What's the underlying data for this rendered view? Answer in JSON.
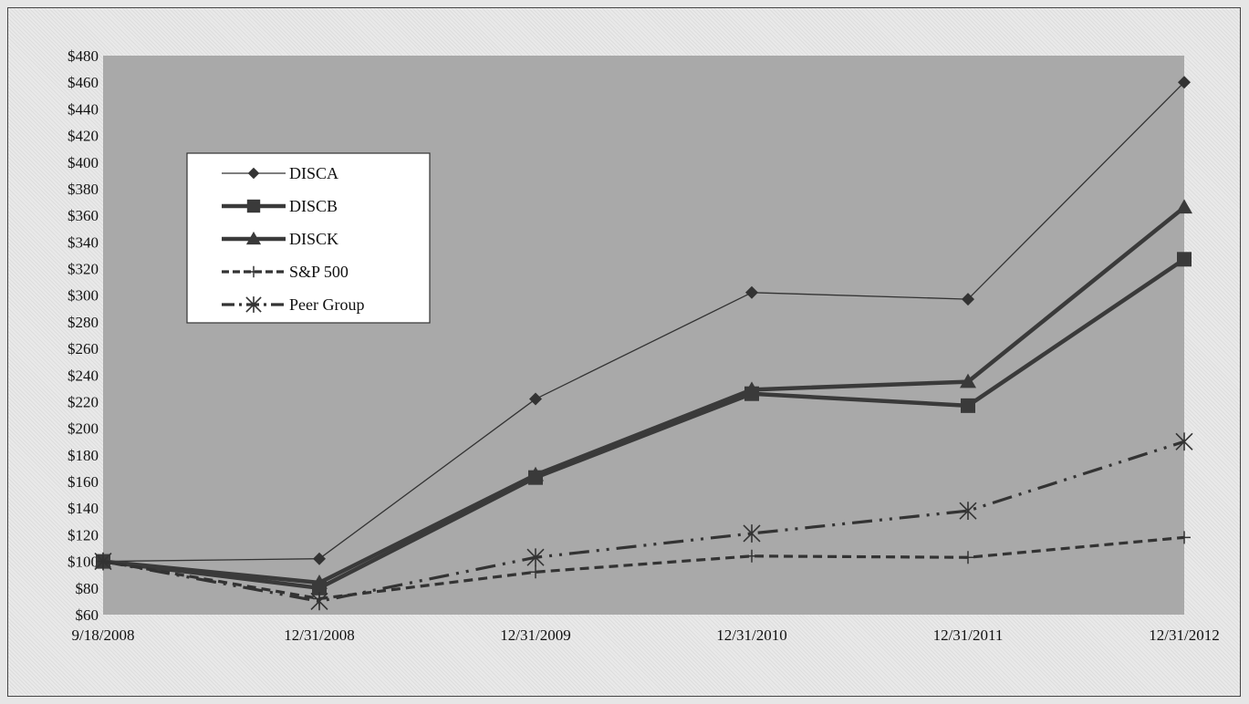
{
  "chart_data": {
    "type": "line",
    "categories": [
      "9/18/2008",
      "12/31/2008",
      "12/31/2009",
      "12/31/2010",
      "12/31/2011",
      "12/31/2012"
    ],
    "series": [
      {
        "name": "DISCA",
        "values": [
          100,
          102,
          222,
          302,
          297,
          460
        ],
        "marker": "diamond",
        "style": "solid-thin",
        "color": "#333333"
      },
      {
        "name": "DISCB",
        "values": [
          100,
          80,
          163,
          226,
          217,
          327
        ],
        "marker": "square",
        "style": "solid-thick",
        "color": "#3a3a3a"
      },
      {
        "name": "DISCK",
        "values": [
          100,
          84,
          165,
          229,
          235,
          366
        ],
        "marker": "triangle",
        "style": "solid-thick",
        "color": "#3a3a3a"
      },
      {
        "name": "S&P 500",
        "values": [
          100,
          72,
          92,
          104,
          103,
          118
        ],
        "marker": "plus",
        "style": "dashed",
        "color": "#333333"
      },
      {
        "name": "Peer Group",
        "values": [
          100,
          70,
          103,
          121,
          138,
          190
        ],
        "marker": "star",
        "style": "dash-dot-dot",
        "color": "#333333"
      }
    ],
    "ylim": [
      60,
      480
    ],
    "ystep": 20,
    "ytick_prefix": "$",
    "title": "",
    "xlabel": "",
    "ylabel": "",
    "grid": false,
    "legend_position": "upper-left",
    "plot_background": "#a9a9a9"
  }
}
